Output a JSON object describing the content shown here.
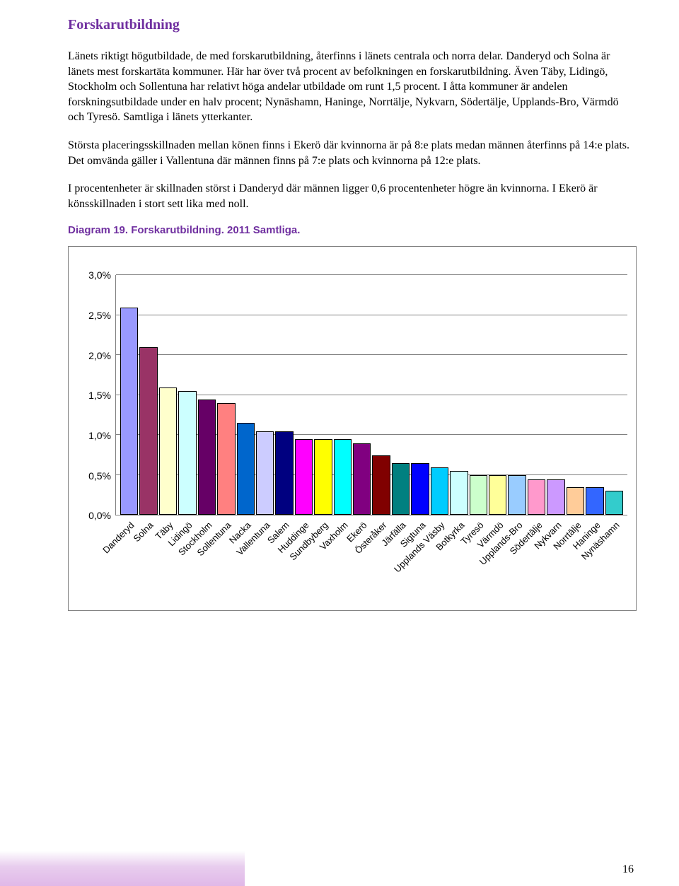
{
  "section_title": "Forskarutbildning",
  "paragraphs": {
    "p1": "Länets riktigt högutbildade, de med forskarutbildning, återfinns i länets centrala och norra delar. Danderyd och Solna är länets mest forskartäta kommuner. Här har över två procent av befolkningen en forskarutbildning. Även Täby, Lidingö, Stockholm och Sollentuna har relativt höga andelar utbildade om runt 1,5 procent. I åtta kommuner är andelen forskningsutbildade under en halv procent; Nynäshamn, Haninge, Norrtälje, Nykvarn, Södertälje, Upplands-Bro, Värmdö och Tyresö. Samtliga i länets ytterkanter.",
    "p2": "Största placeringsskillnaden mellan könen finns i Ekerö där kvinnorna är på 8:e plats medan männen återfinns på 14:e plats. Det omvända gäller i Vallentuna där männen finns på 7:e plats och kvinnorna på 12:e plats.",
    "p3": "I procentenheter är skillnaden störst i Danderyd där männen ligger 0,6 procentenheter högre än kvinnorna. I Ekerö är könsskillnaden i stort sett lika med noll."
  },
  "diagram_caption": "Diagram 19. Forskarutbildning. 2011 Samtliga.",
  "chart": {
    "type": "bar",
    "y_max": 3.0,
    "y_ticks": [
      "3,0%",
      "2,5%",
      "2,0%",
      "1,5%",
      "1,0%",
      "0,5%",
      "0,0%"
    ],
    "y_tick_values": [
      3.0,
      2.5,
      2.0,
      1.5,
      1.0,
      0.5,
      0.0
    ],
    "grid_color": "#808080",
    "background_color": "#ffffff",
    "bar_border_color": "#000000",
    "bars": [
      {
        "label": "Danderyd",
        "value": 2.6,
        "color": "#9999ff"
      },
      {
        "label": "Solna",
        "value": 2.1,
        "color": "#993366"
      },
      {
        "label": "Täby",
        "value": 1.6,
        "color": "#ffffcc"
      },
      {
        "label": "Lidingö",
        "value": 1.55,
        "color": "#ccffff"
      },
      {
        "label": "Stockholm",
        "value": 1.45,
        "color": "#660066"
      },
      {
        "label": "Sollentuna",
        "value": 1.4,
        "color": "#ff8080"
      },
      {
        "label": "Nacka",
        "value": 1.15,
        "color": "#0066cc"
      },
      {
        "label": "Vallentuna",
        "value": 1.05,
        "color": "#ccccff"
      },
      {
        "label": "Salem",
        "value": 1.05,
        "color": "#000080"
      },
      {
        "label": "Huddinge",
        "value": 0.95,
        "color": "#ff00ff"
      },
      {
        "label": "Sundbyberg",
        "value": 0.95,
        "color": "#ffff00"
      },
      {
        "label": "Vaxholm",
        "value": 0.95,
        "color": "#00ffff"
      },
      {
        "label": "Ekerö",
        "value": 0.9,
        "color": "#800080"
      },
      {
        "label": "Österåker",
        "value": 0.75,
        "color": "#800000"
      },
      {
        "label": "Järfälla",
        "value": 0.65,
        "color": "#008080"
      },
      {
        "label": "Sigtuna",
        "value": 0.65,
        "color": "#0000ff"
      },
      {
        "label": "Upplands Väsby",
        "value": 0.6,
        "color": "#00ccff"
      },
      {
        "label": "Botkyrka",
        "value": 0.55,
        "color": "#ccffff"
      },
      {
        "label": "Tyresö",
        "value": 0.5,
        "color": "#ccffcc"
      },
      {
        "label": "Värmdö",
        "value": 0.5,
        "color": "#ffff99"
      },
      {
        "label": "Upplands-Bro",
        "value": 0.5,
        "color": "#99ccff"
      },
      {
        "label": "Södertälje",
        "value": 0.45,
        "color": "#ff99cc"
      },
      {
        "label": "Nykvarn",
        "value": 0.45,
        "color": "#cc99ff"
      },
      {
        "label": "Norrtälje",
        "value": 0.35,
        "color": "#ffcc99"
      },
      {
        "label": "Haninge",
        "value": 0.35,
        "color": "#3366ff"
      },
      {
        "label": "Nynäshamn",
        "value": 0.3,
        "color": "#33cccc"
      }
    ]
  },
  "footer": {
    "band_width_pct": 36,
    "band_color_bottom": "#e0b8e8",
    "band_color_top": "#e8cdee"
  },
  "page_number": "16"
}
